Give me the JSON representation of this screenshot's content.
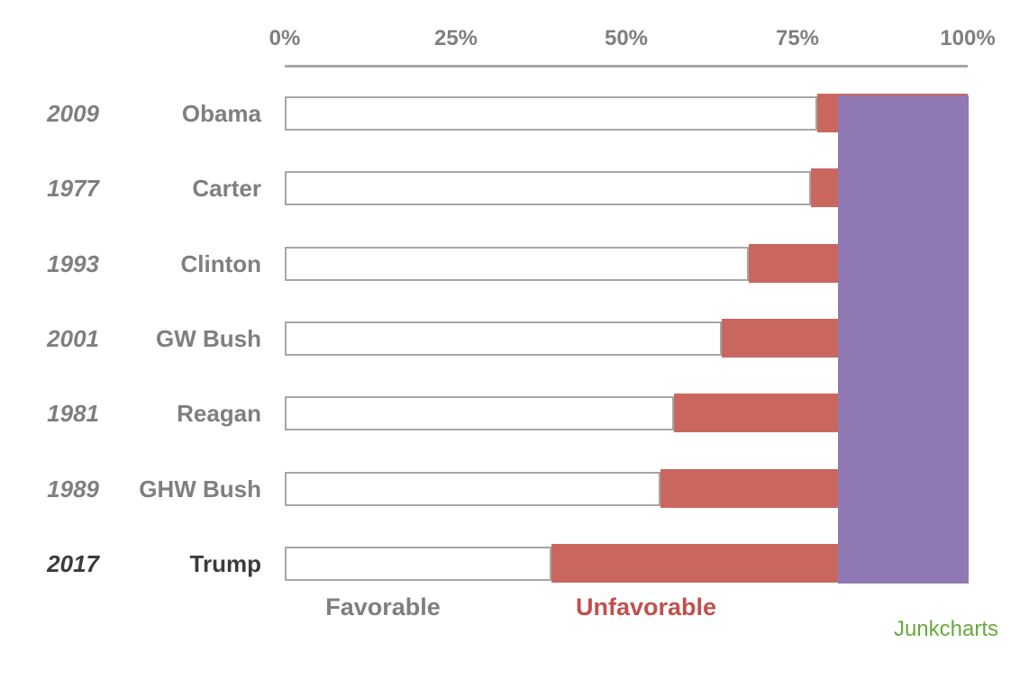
{
  "chart_data": {
    "type": "bar",
    "orientation": "horizontal",
    "title": "",
    "axis": {
      "position": "top",
      "range": [
        0,
        100
      ],
      "tick_labels": [
        "0%",
        "25%",
        "50%",
        "75%",
        "100%"
      ],
      "tick_values": [
        0,
        25,
        50,
        75,
        100
      ]
    },
    "grid": false,
    "years": [
      "2009",
      "1977",
      "1993",
      "2001",
      "1981",
      "1989",
      "2017"
    ],
    "categories": [
      "Obama",
      "Carter",
      "Clinton",
      "GW Bush",
      "Reagan",
      "GHW Bush",
      "Trump"
    ],
    "series": [
      {
        "name": "Favorable",
        "values": [
          78,
          77,
          68,
          64,
          57,
          55,
          39
        ]
      },
      {
        "name": "Unfavorable",
        "values": [
          22,
          23,
          32,
          36,
          43,
          45,
          61
        ],
        "note": "each unfavorable bar is drawn from the end of the favorable bar out to 100%"
      }
    ],
    "emphasized_row": "Trump",
    "overlay_rect": {
      "shape": "rectangle",
      "from_pct": 81,
      "to_pct": 100,
      "covers": "all rows",
      "color": "#9079b2"
    },
    "legend": {
      "position": "bottom",
      "entries": [
        {
          "label": "Favorable",
          "color": "#7f7f7f"
        },
        {
          "label": "Unfavorable",
          "color": "#c0504d"
        }
      ]
    }
  },
  "colors": {
    "favorable_bar_fill": "#ffffff",
    "favorable_bar_border": "#a6a6a6",
    "unfavorable_bar": "#c9675f",
    "overlay_purple": "#9079b2",
    "axis_line": "#a6a6a6",
    "label_gray": "#7f7f7f",
    "label_emphasis": "#3b3b3b",
    "legend_unfavorable": "#c0504d",
    "signature_green": "#69a83e"
  },
  "signature": {
    "text": "Junkcharts"
  }
}
